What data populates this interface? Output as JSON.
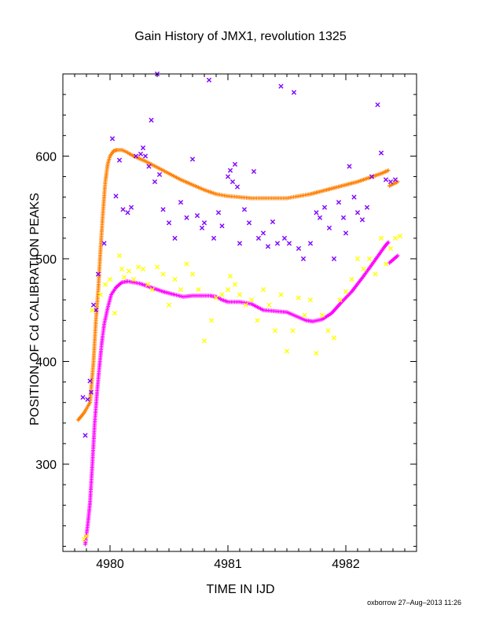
{
  "chart_data": {
    "type": "scatter",
    "title": "Gain History of JMX1, revolution 1325",
    "xlabel": "TIME IN IJD",
    "ylabel": "POSITION OF Cd CALIBRATION PEAKS",
    "credit": "oxborrow 27–Aug–2013 11:26",
    "xlim": [
      4979.6,
      4982.6
    ],
    "ylim": [
      215,
      680
    ],
    "x_ticks": [
      4980,
      4981,
      4982
    ],
    "y_ticks": [
      300,
      400,
      500,
      600
    ],
    "x_tick_labels": [
      "4980",
      "4981",
      "4982"
    ],
    "y_tick_labels": [
      "300",
      "400",
      "500",
      "600"
    ],
    "grid": false,
    "series": [
      {
        "id": "orange-fit",
        "color": "#ff7f00",
        "marker": "plus-dense",
        "points": [
          [
            4979.73,
            343
          ],
          [
            4979.78,
            350
          ],
          [
            4979.83,
            360
          ],
          [
            4979.86,
            400
          ],
          [
            4979.88,
            440
          ],
          [
            4979.9,
            470
          ],
          [
            4979.92,
            510
          ],
          [
            4979.94,
            545
          ],
          [
            4979.96,
            575
          ],
          [
            4979.98,
            592
          ],
          [
            4980.0,
            600
          ],
          [
            4980.03,
            605
          ],
          [
            4980.06,
            606
          ],
          [
            4980.1,
            606
          ],
          [
            4980.14,
            604
          ],
          [
            4980.2,
            600
          ],
          [
            4980.3,
            595
          ],
          [
            4980.4,
            589
          ],
          [
            4980.5,
            583
          ],
          [
            4980.6,
            577
          ],
          [
            4980.7,
            572
          ],
          [
            4980.8,
            567
          ],
          [
            4980.9,
            563
          ],
          [
            4981.0,
            561
          ],
          [
            4981.1,
            560
          ],
          [
            4981.2,
            559
          ],
          [
            4981.3,
            559
          ],
          [
            4981.4,
            559
          ],
          [
            4981.5,
            559
          ],
          [
            4981.6,
            561
          ],
          [
            4981.7,
            563
          ],
          [
            4981.8,
            566
          ],
          [
            4981.9,
            569
          ],
          [
            4982.0,
            572
          ],
          [
            4982.1,
            575
          ],
          [
            4982.2,
            579
          ],
          [
            4982.3,
            583
          ],
          [
            4982.36,
            586
          ]
        ],
        "tail": [
          [
            4982.37,
            571
          ],
          [
            4982.44,
            575
          ]
        ]
      },
      {
        "id": "magenta-fit",
        "color": "#ff00ff",
        "marker": "plus-dense",
        "points": [
          [
            4979.79,
            222
          ],
          [
            4979.81,
            240
          ],
          [
            4979.83,
            262
          ],
          [
            4979.85,
            300
          ],
          [
            4979.87,
            340
          ],
          [
            4979.89,
            370
          ],
          [
            4979.91,
            395
          ],
          [
            4979.93,
            418
          ],
          [
            4979.95,
            436
          ],
          [
            4979.98,
            452
          ],
          [
            4980.01,
            465
          ],
          [
            4980.05,
            472
          ],
          [
            4980.1,
            477
          ],
          [
            4980.15,
            478
          ],
          [
            4980.25,
            476
          ],
          [
            4980.35,
            472
          ],
          [
            4980.45,
            468
          ],
          [
            4980.55,
            465
          ],
          [
            4980.62,
            463
          ],
          [
            4980.7,
            464
          ],
          [
            4980.78,
            464
          ],
          [
            4980.85,
            464
          ],
          [
            4980.9,
            463
          ],
          [
            4980.95,
            460
          ],
          [
            4981.0,
            458
          ],
          [
            4981.1,
            458
          ],
          [
            4981.2,
            456
          ],
          [
            4981.3,
            450
          ],
          [
            4981.4,
            449
          ],
          [
            4981.5,
            448
          ],
          [
            4981.58,
            444
          ],
          [
            4981.66,
            440
          ],
          [
            4981.72,
            439
          ],
          [
            4981.8,
            441
          ],
          [
            4981.88,
            447
          ],
          [
            4981.95,
            456
          ],
          [
            4982.05,
            468
          ],
          [
            4982.15,
            483
          ],
          [
            4982.25,
            499
          ],
          [
            4982.33,
            512
          ],
          [
            4982.36,
            516
          ]
        ],
        "tail": [
          [
            4982.37,
            496
          ],
          [
            4982.44,
            503
          ]
        ]
      },
      {
        "id": "purple-points",
        "color": "#7f00ff",
        "marker": "x",
        "points": [
          [
            4979.77,
            365
          ],
          [
            4979.79,
            328
          ],
          [
            4979.81,
            363
          ],
          [
            4979.83,
            381
          ],
          [
            4979.84,
            370
          ],
          [
            4979.86,
            455
          ],
          [
            4979.88,
            450
          ],
          [
            4979.9,
            485
          ],
          [
            4979.95,
            515
          ],
          [
            4980.02,
            617
          ],
          [
            4980.05,
            561
          ],
          [
            4980.08,
            596
          ],
          [
            4980.11,
            548
          ],
          [
            4980.15,
            545
          ],
          [
            4980.18,
            550
          ],
          [
            4980.22,
            600
          ],
          [
            4980.26,
            602
          ],
          [
            4980.28,
            608
          ],
          [
            4980.3,
            600
          ],
          [
            4980.33,
            590
          ],
          [
            4980.35,
            635
          ],
          [
            4980.38,
            575
          ],
          [
            4980.4,
            680
          ],
          [
            4980.42,
            582
          ],
          [
            4980.45,
            548
          ],
          [
            4980.5,
            535
          ],
          [
            4980.55,
            520
          ],
          [
            4980.6,
            555
          ],
          [
            4980.65,
            540
          ],
          [
            4980.7,
            597
          ],
          [
            4980.74,
            542
          ],
          [
            4980.78,
            530
          ],
          [
            4980.8,
            535
          ],
          [
            4980.84,
            674
          ],
          [
            4980.88,
            520
          ],
          [
            4980.92,
            545
          ],
          [
            4980.95,
            532
          ],
          [
            4981.0,
            580
          ],
          [
            4981.02,
            586
          ],
          [
            4981.04,
            575
          ],
          [
            4981.06,
            592
          ],
          [
            4981.08,
            570
          ],
          [
            4981.1,
            515
          ],
          [
            4981.14,
            548
          ],
          [
            4981.18,
            535
          ],
          [
            4981.22,
            585
          ],
          [
            4981.26,
            520
          ],
          [
            4981.3,
            525
          ],
          [
            4981.34,
            512
          ],
          [
            4981.38,
            536
          ],
          [
            4981.42,
            515
          ],
          [
            4981.45,
            668
          ],
          [
            4981.48,
            520
          ],
          [
            4981.52,
            515
          ],
          [
            4981.56,
            662
          ],
          [
            4981.6,
            510
          ],
          [
            4981.64,
            500
          ],
          [
            4981.7,
            515
          ],
          [
            4981.75,
            545
          ],
          [
            4981.78,
            540
          ],
          [
            4981.82,
            550
          ],
          [
            4981.86,
            530
          ],
          [
            4981.9,
            500
          ],
          [
            4981.94,
            555
          ],
          [
            4981.98,
            540
          ],
          [
            4982.0,
            525
          ],
          [
            4982.03,
            590
          ],
          [
            4982.07,
            560
          ],
          [
            4982.1,
            545
          ],
          [
            4982.14,
            538
          ],
          [
            4982.18,
            550
          ],
          [
            4982.22,
            580
          ],
          [
            4982.27,
            650
          ],
          [
            4982.3,
            603
          ],
          [
            4982.34,
            577
          ],
          [
            4982.38,
            575
          ],
          [
            4982.42,
            577
          ]
        ]
      },
      {
        "id": "yellow-points",
        "color": "#ffff00",
        "marker": "x",
        "points": [
          [
            4979.78,
            227
          ],
          [
            4979.8,
            230
          ],
          [
            4979.85,
            450
          ],
          [
            4979.92,
            465
          ],
          [
            4979.96,
            475
          ],
          [
            4980.0,
            480
          ],
          [
            4980.04,
            447
          ],
          [
            4980.08,
            503
          ],
          [
            4980.1,
            490
          ],
          [
            4980.12,
            482
          ],
          [
            4980.16,
            488
          ],
          [
            4980.2,
            480
          ],
          [
            4980.24,
            492
          ],
          [
            4980.28,
            490
          ],
          [
            4980.32,
            475
          ],
          [
            4980.36,
            470
          ],
          [
            4980.4,
            492
          ],
          [
            4980.45,
            485
          ],
          [
            4980.5,
            455
          ],
          [
            4980.55,
            480
          ],
          [
            4980.6,
            470
          ],
          [
            4980.65,
            495
          ],
          [
            4980.7,
            485
          ],
          [
            4980.75,
            470
          ],
          [
            4980.8,
            420
          ],
          [
            4980.86,
            440
          ],
          [
            4980.9,
            462
          ],
          [
            4980.95,
            465
          ],
          [
            4981.0,
            470
          ],
          [
            4981.02,
            483
          ],
          [
            4981.06,
            475
          ],
          [
            4981.1,
            465
          ],
          [
            4981.15,
            455
          ],
          [
            4981.2,
            460
          ],
          [
            4981.25,
            440
          ],
          [
            4981.3,
            470
          ],
          [
            4981.35,
            455
          ],
          [
            4981.4,
            430
          ],
          [
            4981.45,
            465
          ],
          [
            4981.5,
            410
          ],
          [
            4981.55,
            430
          ],
          [
            4981.6,
            462
          ],
          [
            4981.65,
            445
          ],
          [
            4981.7,
            460
          ],
          [
            4981.75,
            408
          ],
          [
            4981.8,
            445
          ],
          [
            4981.85,
            430
          ],
          [
            4981.9,
            423
          ],
          [
            4981.95,
            460
          ],
          [
            4982.0,
            468
          ],
          [
            4982.05,
            480
          ],
          [
            4982.1,
            500
          ],
          [
            4982.15,
            490
          ],
          [
            4982.2,
            500
          ],
          [
            4982.25,
            485
          ],
          [
            4982.3,
            520
          ],
          [
            4982.34,
            495
          ],
          [
            4982.38,
            510
          ],
          [
            4982.42,
            520
          ],
          [
            4982.46,
            522
          ]
        ]
      }
    ]
  }
}
